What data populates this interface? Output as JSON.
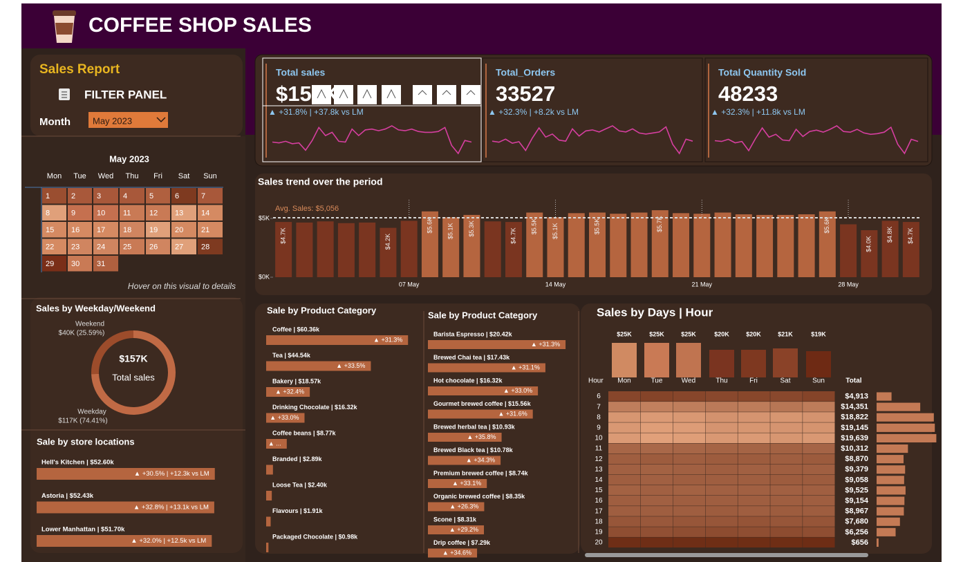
{
  "header": {
    "title": "COFFEE SHOP SALES"
  },
  "filter": {
    "report_title": "Sales Report",
    "panel_title": "FILTER PANEL",
    "month_label": "Month",
    "month_value": "May 2023"
  },
  "calendar": {
    "title": "May 2023",
    "weekdays": [
      "Mon",
      "Tue",
      "Wed",
      "Thu",
      "Fri",
      "Sat",
      "Sun"
    ],
    "days": [
      1,
      2,
      3,
      4,
      5,
      6,
      7,
      8,
      9,
      10,
      11,
      12,
      13,
      14,
      15,
      16,
      17,
      18,
      19,
      20,
      21,
      22,
      23,
      24,
      25,
      26,
      27,
      28,
      29,
      30,
      31
    ],
    "day_colors": [
      "#9a4e30",
      "#a8583a",
      "#a8583a",
      "#a8583a",
      "#b0603f",
      "#7e3a20",
      "#a8583a",
      "#e0a07a",
      "#c5704f",
      "#c5704f",
      "#c97a55",
      "#c97a55",
      "#e0a07a",
      "#d58a62",
      "#d58a62",
      "#d58a62",
      "#d58a62",
      "#d08560",
      "#e0a07a",
      "#d58a62",
      "#d58a62",
      "#d58a62",
      "#d08560",
      "#d08560",
      "#c97a55",
      "#d08560",
      "#e0a07a",
      "#7e3a20",
      "#7a2e18",
      "#c97a55",
      "#b0603f"
    ],
    "hint": "Hover on this visual to details"
  },
  "weekday_weekend": {
    "title": "Sales by Weekday/Weekend",
    "center_value": "$157K",
    "center_label": "Total sales",
    "slices": [
      {
        "name": "Weekend",
        "label": "$40K (25.59%)",
        "value": 25.59,
        "color": "#9c4c2b"
      },
      {
        "name": "Weekday",
        "label": "$117K (74.41%)",
        "value": 74.41,
        "color": "#c06a45"
      }
    ]
  },
  "stores": {
    "title": "Sale by store locations",
    "color": "#b5653f",
    "items": [
      {
        "label": "Hell's Kitchen | $52.60k",
        "value": 52.6,
        "delta": "▲ +30.5% | +12.3k vs LM"
      },
      {
        "label": "Astoria | $52.43k",
        "value": 52.43,
        "delta": "▲ +32.8% | +13.1k vs LM"
      },
      {
        "label": "Lower Manhattan | $51.70k",
        "value": 51.7,
        "delta": "▲ +32.0% | +12.5k vs LM"
      }
    ]
  },
  "kpis": {
    "spark_color": "#d63fa0",
    "cards": [
      {
        "title": "Total sales",
        "value": "$157K",
        "delta": "▲ +31.8% | +37.8k vs LM",
        "spark": [
          4700,
          4650,
          4750,
          4600,
          4650,
          4200,
          4800,
          5600,
          5100,
          5300,
          4750,
          4700,
          5500,
          5100,
          5450,
          5500,
          5400,
          5500,
          5700,
          5450,
          5400,
          5500,
          5350,
          5300,
          5300,
          5350,
          5600,
          4500,
          4000,
          4800,
          4700
        ]
      },
      {
        "title": "Total_Orders",
        "value": "33527",
        "delta": "▲ +32.3% | +8.2k vs LM",
        "spark": [
          1020,
          1010,
          1040,
          1000,
          1015,
          930,
          1050,
          1150,
          1060,
          1090,
          1030,
          1020,
          1140,
          1070,
          1120,
          1130,
          1110,
          1140,
          1170,
          1120,
          1110,
          1140,
          1100,
          1090,
          1100,
          1110,
          1160,
          990,
          900,
          1040,
          1020
        ]
      },
      {
        "title": "Total Quantity Sold",
        "value": "48233",
        "delta": "▲ +32.3% | +11.8k vs LM",
        "spark": [
          1470,
          1460,
          1490,
          1440,
          1460,
          1330,
          1500,
          1650,
          1520,
          1560,
          1480,
          1470,
          1630,
          1530,
          1600,
          1620,
          1590,
          1630,
          1680,
          1600,
          1590,
          1630,
          1580,
          1560,
          1570,
          1590,
          1660,
          1420,
          1290,
          1490,
          1460
        ]
      }
    ]
  },
  "trend": {
    "title": "Sales trend over the period",
    "avg": 5056,
    "avg_label": "Avg. Sales: $5,056",
    "ylim": [
      0,
      6000
    ],
    "yticks": [
      {
        "value": 0,
        "label": "$0K"
      },
      {
        "value": 5000,
        "label": "$5K"
      }
    ],
    "below_color": "#7a3520",
    "above_color": "#b5653f",
    "avg_color": "#d9d9d9",
    "categories": [
      null,
      null,
      null,
      null,
      null,
      null,
      "07 May",
      null,
      null,
      null,
      null,
      null,
      null,
      "14 May",
      null,
      null,
      null,
      null,
      null,
      null,
      "21 May",
      null,
      null,
      null,
      null,
      null,
      null,
      "28 May",
      null,
      null,
      null
    ],
    "values": [
      4700,
      4650,
      4750,
      4600,
      4650,
      4200,
      4800,
      5600,
      5100,
      5300,
      4750,
      4700,
      5500,
      5100,
      5450,
      5500,
      5400,
      5500,
      5700,
      5450,
      5400,
      5500,
      5350,
      5300,
      5300,
      5350,
      5600,
      4500,
      4000,
      4800,
      4700
    ],
    "value_labels": [
      "$4.7K",
      null,
      null,
      null,
      null,
      "$4.2K",
      null,
      "$5.6K",
      "$5.1K",
      "$5.3K",
      null,
      "$4.7K",
      "$5.5K",
      "$5.1K",
      null,
      "$5.5K",
      null,
      null,
      "$5.7K",
      null,
      null,
      null,
      null,
      null,
      null,
      null,
      "$5.6K",
      null,
      "$4.0K",
      "$4.8K",
      "$4.7K"
    ]
  },
  "product_category": {
    "title": "Sale by Product Category",
    "color": "#b5653f",
    "items": [
      {
        "label": "Coffee | $60.36k",
        "value": 60.36,
        "delta": "▲ +31.3%"
      },
      {
        "label": "Tea | $44.54k",
        "value": 44.54,
        "delta": "▲ +33.5%"
      },
      {
        "label": "Bakery | $18.57k",
        "value": 18.57,
        "delta": "▲ +32.4%"
      },
      {
        "label": "Drinking Chocolate | $16.32k",
        "value": 16.32,
        "delta": "▲ +33.0%"
      },
      {
        "label": "Coffee beans | $8.77k",
        "value": 8.77,
        "delta": "▲ ..."
      },
      {
        "label": "Branded | $2.89k",
        "value": 2.89
      },
      {
        "label": "Loose Tea | $2.40k",
        "value": 2.4
      },
      {
        "label": "Flavours | $1.91k",
        "value": 1.91
      },
      {
        "label": "Packaged Chocolate | $0.98k",
        "value": 0.98
      }
    ]
  },
  "product_type": {
    "title": "Sale by Product Category",
    "color": "#b5653f",
    "items": [
      {
        "label": "Barista Espresso | $20.42k",
        "value": 20.42,
        "delta": "▲ +31.3%"
      },
      {
        "label": "Brewed Chai tea | $17.43k",
        "value": 17.43,
        "delta": "▲ +31.1%"
      },
      {
        "label": "Hot chocolate | $16.32k",
        "value": 16.32,
        "delta": "▲ +33.0%"
      },
      {
        "label": "Gourmet brewed coffee | $15.56k",
        "value": 15.56,
        "delta": "▲ +31.6%"
      },
      {
        "label": "Brewed herbal tea | $10.93k",
        "value": 10.93,
        "delta": "▲ +35.8%"
      },
      {
        "label": "Brewed Black tea | $10.78k",
        "value": 10.78,
        "delta": "▲ +34.3%"
      },
      {
        "label": "Premium brewed coffee | $8.74k",
        "value": 8.74,
        "delta": "▲ +33.1%"
      },
      {
        "label": "Organic brewed coffee | $8.35k",
        "value": 8.35,
        "delta": "▲ +26.3%"
      },
      {
        "label": "Scone | $8.31k",
        "value": 8.31,
        "delta": "▲ +29.2%"
      },
      {
        "label": "Drip coffee | $7.29k",
        "value": 7.29,
        "delta": "▲ +34.6%"
      }
    ]
  },
  "days_hour": {
    "title": "Sales by Days | Hour",
    "hour_header": "Hour",
    "total_header": "Total",
    "days": [
      "Mon",
      "Tue",
      "Wed",
      "Thu",
      "Fri",
      "Sat",
      "Sun"
    ],
    "day_values": [
      25000,
      25000,
      25000,
      20000,
      20000,
      21000,
      19000
    ],
    "day_labels": [
      "$25K",
      "$25K",
      "$25K",
      "$20K",
      "$20K",
      "$21K",
      "$19K"
    ],
    "day_colors": [
      "#d08a62",
      "#c97a55",
      "#c07450",
      "#7a3420",
      "#7e3820",
      "#8a4228",
      "#6e2a14"
    ],
    "hours": [
      6,
      7,
      8,
      9,
      10,
      11,
      12,
      13,
      14,
      15,
      16,
      17,
      18,
      19,
      20
    ],
    "totals": [
      4913,
      14351,
      18822,
      19145,
      19639,
      10312,
      8870,
      9379,
      9058,
      9525,
      9154,
      8967,
      7680,
      6256,
      656
    ],
    "total_labels": [
      "$4,913",
      "$14,351",
      "$18,822",
      "$19,145",
      "$19,639",
      "$10,312",
      "$8,870",
      "$9,379",
      "$9,058",
      "$9,525",
      "$9,154",
      "$8,967",
      "$7,680",
      "$6,256",
      "$656"
    ],
    "total_color": "#c47a55",
    "color_low": "#6b2a12",
    "color_high": "#e3a27c",
    "color_range": [
      0,
      3000
    ],
    "cells": [
      [
        700,
        650,
        700,
        750,
        720,
        750,
        643
      ],
      [
        2100,
        2150,
        2100,
        2000,
        2050,
        1900,
        2051
      ],
      [
        2700,
        2800,
        2750,
        2600,
        2650,
        2700,
        2622
      ],
      [
        2750,
        2900,
        2850,
        2650,
        2700,
        2650,
        2645
      ],
      [
        2800,
        2950,
        2900,
        2750,
        2800,
        2700,
        2739
      ],
      [
        1500,
        1550,
        1500,
        1450,
        1450,
        1400,
        1462
      ],
      [
        1300,
        1250,
        1300,
        1250,
        1250,
        1300,
        1220
      ],
      [
        1350,
        1400,
        1350,
        1300,
        1350,
        1300,
        1329
      ],
      [
        1300,
        1350,
        1300,
        1300,
        1300,
        1250,
        1258
      ],
      [
        1400,
        1350,
        1400,
        1350,
        1350,
        1350,
        1325
      ],
      [
        1300,
        1350,
        1300,
        1300,
        1300,
        1300,
        1304
      ],
      [
        1300,
        1300,
        1300,
        1250,
        1300,
        1250,
        1267
      ],
      [
        1100,
        1150,
        1100,
        1100,
        1050,
        1100,
        1080
      ],
      [
        900,
        950,
        900,
        850,
        900,
        850,
        906
      ],
      [
        100,
        100,
        100,
        90,
        90,
        90,
        86
      ]
    ]
  }
}
